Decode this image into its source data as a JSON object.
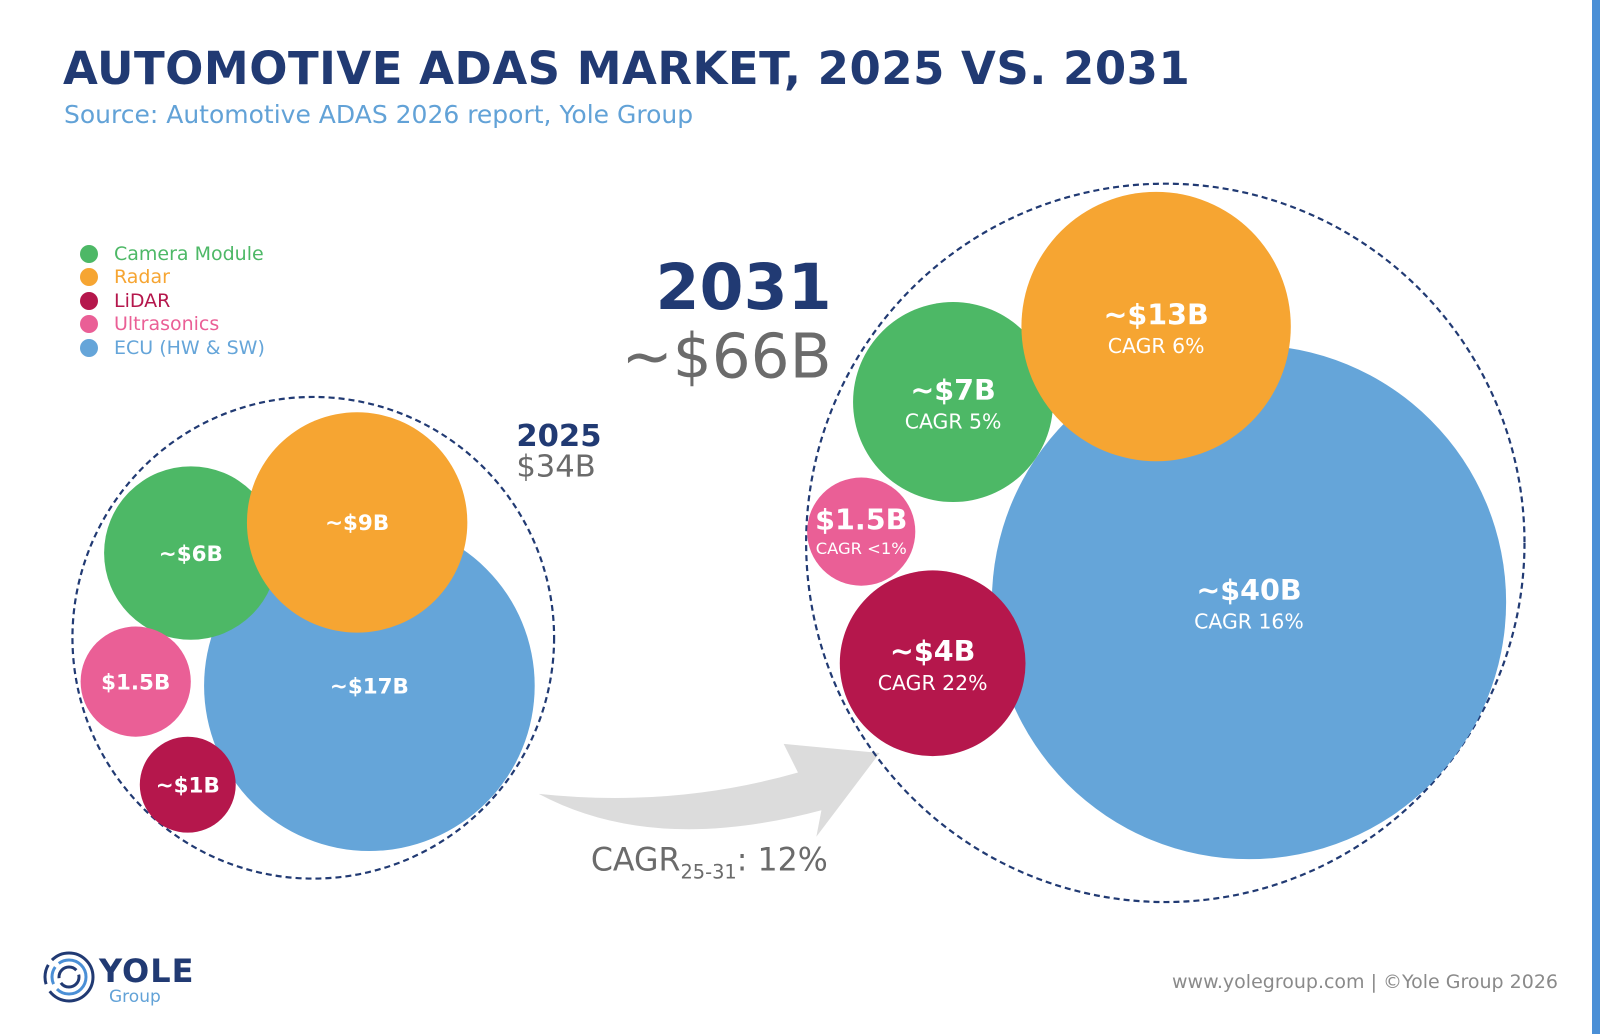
{
  "header": {
    "title": "AUTOMOTIVE ADAS MARKET, 2025 VS. 2031",
    "subtitle": "Source: Automotive ADAS 2026 report, Yole Group"
  },
  "colors": {
    "camera": "#4db866",
    "radar": "#f6a532",
    "lidar": "#b5174c",
    "ultrasonics": "#ea5f96",
    "ecu": "#65a5d9",
    "navy": "#213a73",
    "gray": "#6b6b6b",
    "accent_bar": "#4a8fd6",
    "arrow": "#dcdcdc"
  },
  "chart_data": {
    "type": "bubble",
    "title": "AUTOMOTIVE ADAS MARKET, 2025 VS. 2031",
    "subtitle": "Source: Automotive ADAS 2026 report, Yole Group",
    "legend": {
      "position": "top-left",
      "entries": [
        {
          "key": "camera",
          "label": "Camera Module",
          "color_key": "camera"
        },
        {
          "key": "radar",
          "label": "Radar",
          "color_key": "radar"
        },
        {
          "key": "lidar",
          "label": "LiDAR",
          "color_key": "lidar"
        },
        {
          "key": "ultrasonics",
          "label": "Ultrasonics",
          "color_key": "ultrasonics"
        },
        {
          "key": "ecu",
          "label": "ECU (HW & SW)",
          "color_key": "ecu"
        }
      ]
    },
    "groups": [
      {
        "year": "2025",
        "total_label": "$34B",
        "total_value": 34,
        "items": [
          {
            "key": "camera",
            "value": 6,
            "label": "~$6B",
            "cagr": ""
          },
          {
            "key": "radar",
            "value": 9,
            "label": "~$9B",
            "cagr": ""
          },
          {
            "key": "ultrasonics",
            "value": 1.5,
            "label": "$1.5B",
            "cagr": ""
          },
          {
            "key": "lidar",
            "value": 1,
            "label": "~$1B",
            "cagr": ""
          },
          {
            "key": "ecu",
            "value": 17,
            "label": "~$17B",
            "cagr": ""
          }
        ]
      },
      {
        "year": "2031",
        "total_label": "~$66B",
        "total_value": 66,
        "items": [
          {
            "key": "camera",
            "value": 7,
            "label": "~$7B",
            "cagr": "CAGR 5%"
          },
          {
            "key": "radar",
            "value": 13,
            "label": "~$13B",
            "cagr": "CAGR 6%"
          },
          {
            "key": "ultrasonics",
            "value": 1.5,
            "label": "$1.5B",
            "cagr": "CAGR <1%"
          },
          {
            "key": "lidar",
            "value": 4,
            "label": "~$4B",
            "cagr": "CAGR 22%"
          },
          {
            "key": "ecu",
            "value": 40,
            "label": "~$40B",
            "cagr": "CAGR 16%"
          }
        ]
      }
    ],
    "overall_cagr": {
      "prefix": "CAGR",
      "period": "25-31",
      "value": ": 12%"
    }
  },
  "footer": {
    "copyright": "www.yolegroup.com | ©Yole Group 2026",
    "logo_text": "YOLE",
    "logo_subtext": "Group"
  }
}
